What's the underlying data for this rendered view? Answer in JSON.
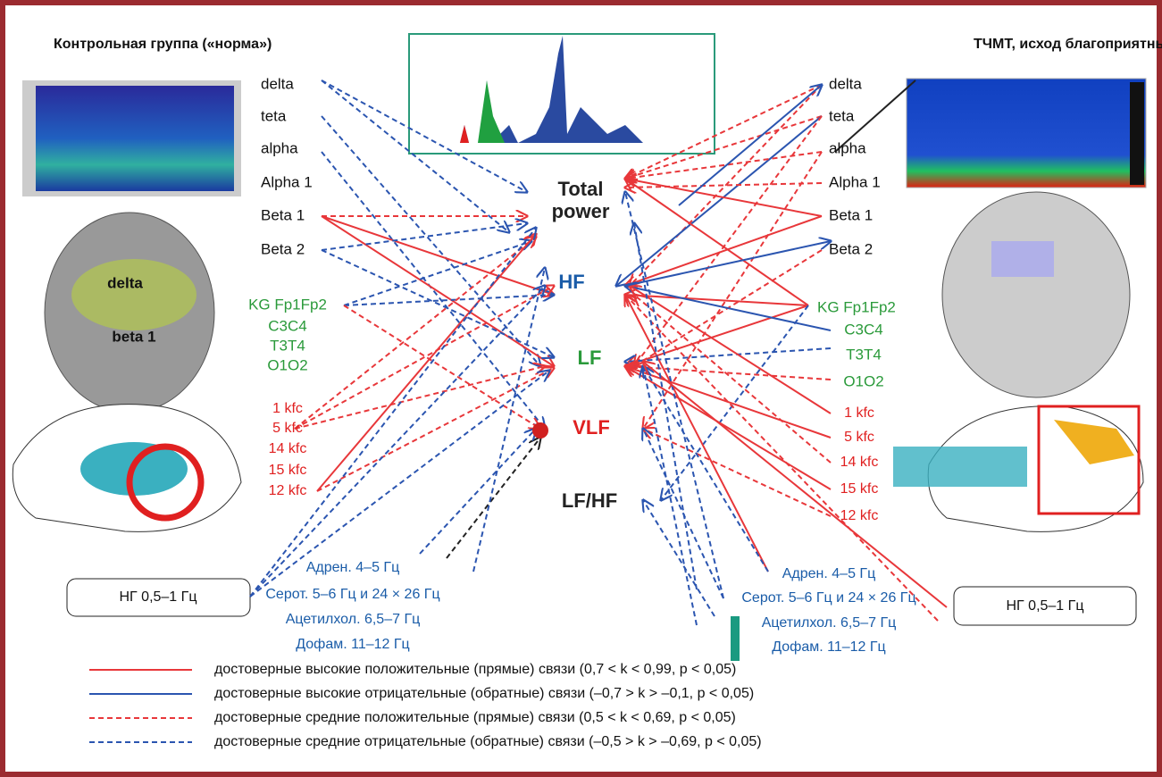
{
  "left": {
    "title": "Контрольная группа («норма»)",
    "eeg_labels": [
      "delta",
      "teta",
      "alpha",
      "Alpha 1",
      "Beta 1",
      "Beta 2"
    ],
    "brain_labels": [
      "delta",
      "beta 1"
    ],
    "kg_labels": [
      "KG Fp1Fp2",
      "C3C4",
      "T3T4",
      "O1O2"
    ],
    "kfc_labels": [
      "1 kfc",
      "5 kfc",
      "14 kfc",
      "15 kfc",
      "12 kfc"
    ],
    "neuro_labels": [
      "Адрен. 4–5 Гц",
      "Серот. 5–6 Гц и 24 × 26 Гц",
      "Ацетилхол. 6,5–7 Гц",
      "Дофам. 11–12 Гц"
    ],
    "box": "НГ 0,5–1 Гц"
  },
  "right": {
    "title": "ТЧМТ, исход благоприятный",
    "eeg_labels": [
      "delta",
      "teta",
      "alpha",
      "Alpha 1",
      "Beta 1",
      "Beta 2"
    ],
    "kg_labels": [
      "KG Fp1Fp2",
      "C3C4",
      "T3T4",
      "O1O2"
    ],
    "kfc_labels": [
      "1 kfc",
      "5 kfc",
      "14 kfc",
      "15 kfc",
      "12 kfc"
    ],
    "neuro_labels": [
      "Адрен. 4–5 Гц",
      "Серот. 5–6 Гц и 24 × 26 Гц",
      "Ацетилхол. 6,5–7 Гц",
      "Дофам. 11–12 Гц"
    ],
    "box": "НГ 0,5–1 Гц"
  },
  "center": {
    "nodes": [
      "Total",
      "power",
      "HF",
      "LF",
      "VLF",
      "LF/HF"
    ]
  },
  "legend": {
    "items": [
      "достоверные высокие положительные (прямые) связи (0,7 < k < 0,99, p < 0,05)",
      "достоверные высокие отрицательные (обратные) связи (–0,7 > k > –0,1, p < 0,05)",
      "достоверные средние положительные (прямые) связи (0,5 < k < 0,69, p < 0,05)",
      "достоверные средние отрицательные (обратные) связи (–0,5 > k > –0,69, p < 0,05)"
    ]
  }
}
